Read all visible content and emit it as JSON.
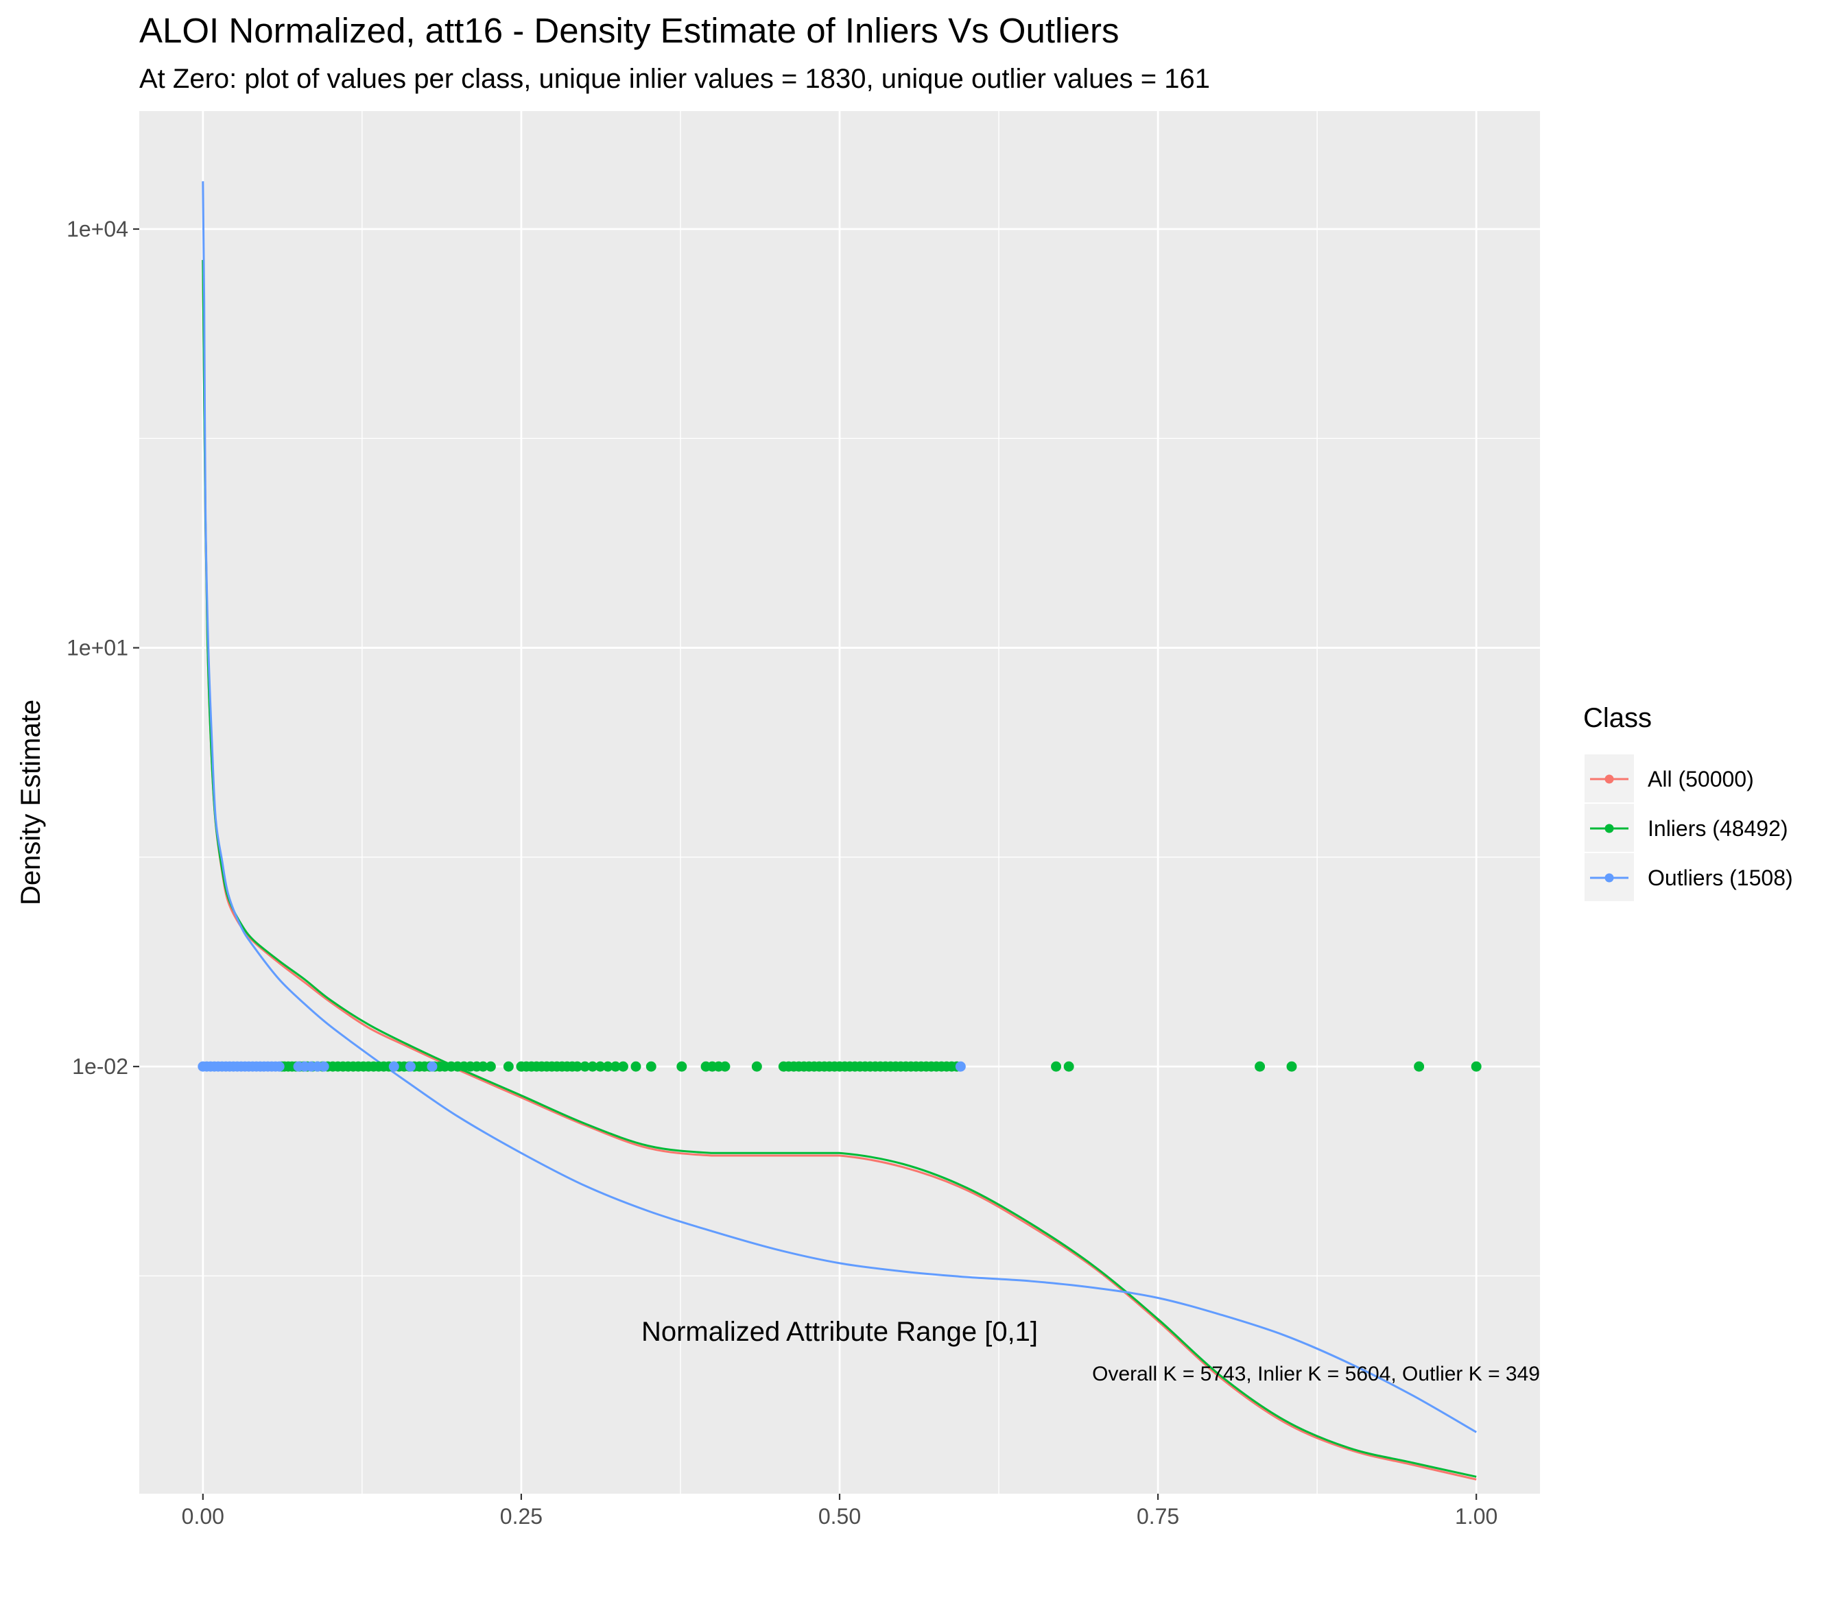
{
  "chart_data": {
    "type": "line",
    "title": "ALOI Normalized, att16 - Density Estimate of Inliers Vs Outliers",
    "subtitle": "At Zero: plot of values per class, unique inlier values = 1830, unique outlier values = 161",
    "xlabel": "Normalized Attribute Range [0,1]",
    "ylabel": "Density Estimate",
    "caption": "Overall K = 5743, Inlier K = 5604, Outlier K = 349",
    "x_scale": "linear",
    "y_scale": "log10",
    "xlim": [
      -0.05,
      1.05
    ],
    "ylim": [
      8.7e-06,
      70000
    ],
    "x_ticks": [
      {
        "value": 0,
        "label": "0.00"
      },
      {
        "value": 0.25,
        "label": "0.25"
      },
      {
        "value": 0.5,
        "label": "0.50"
      },
      {
        "value": 0.75,
        "label": "0.75"
      },
      {
        "value": 1,
        "label": "1.00"
      }
    ],
    "y_ticks": [
      {
        "value": 10000,
        "label": "1e+04"
      },
      {
        "value": 10,
        "label": "1e+01"
      },
      {
        "value": 0.01,
        "label": "1e-02"
      }
    ],
    "grid": true,
    "legend": {
      "title": "Class",
      "position": "right"
    },
    "series": [
      {
        "name": "All (50000)",
        "color": "#F8766D",
        "x": [
          0,
          0.002,
          0.004,
          0.007,
          0.01,
          0.015,
          0.02,
          0.03,
          0.04,
          0.06,
          0.08,
          0.1,
          0.13,
          0.16,
          0.2,
          0.25,
          0.3,
          0.35,
          0.4,
          0.45,
          0.5,
          0.55,
          0.6,
          0.65,
          0.7,
          0.75,
          0.8,
          0.85,
          0.9,
          0.95,
          1.0
        ],
        "y": [
          6000,
          80,
          8,
          1.5,
          0.55,
          0.25,
          0.15,
          0.1,
          0.078,
          0.055,
          0.04,
          0.029,
          0.019,
          0.014,
          0.0095,
          0.006,
          0.0038,
          0.0026,
          0.0023,
          0.0023,
          0.0023,
          0.0019,
          0.0013,
          0.00072,
          0.00036,
          0.00015,
          5.8e-05,
          2.8e-05,
          1.8e-05,
          1.4e-05,
          1.1e-05
        ]
      },
      {
        "name": "Inliers (48492)",
        "color": "#00BA38",
        "x": [
          0,
          0.002,
          0.004,
          0.007,
          0.01,
          0.015,
          0.02,
          0.03,
          0.04,
          0.06,
          0.08,
          0.1,
          0.13,
          0.16,
          0.2,
          0.25,
          0.3,
          0.35,
          0.4,
          0.45,
          0.5,
          0.55,
          0.6,
          0.65,
          0.7,
          0.75,
          0.8,
          0.85,
          0.9,
          0.95,
          1.0
        ],
        "y": [
          6000,
          80,
          8,
          1.5,
          0.56,
          0.26,
          0.16,
          0.105,
          0.08,
          0.057,
          0.042,
          0.03,
          0.02,
          0.0145,
          0.0098,
          0.0062,
          0.0039,
          0.0027,
          0.0024,
          0.0024,
          0.0024,
          0.002,
          0.00135,
          0.00075,
          0.00037,
          0.000155,
          6e-05,
          2.9e-05,
          1.85e-05,
          1.45e-05,
          1.15e-05
        ]
      },
      {
        "name": "Outliers (1508)",
        "color": "#619CFF",
        "x": [
          0,
          0.001,
          0.002,
          0.004,
          0.007,
          0.01,
          0.015,
          0.02,
          0.03,
          0.04,
          0.06,
          0.08,
          0.1,
          0.13,
          0.16,
          0.2,
          0.25,
          0.3,
          0.35,
          0.4,
          0.45,
          0.5,
          0.55,
          0.6,
          0.65,
          0.7,
          0.75,
          0.8,
          0.85,
          0.9,
          0.95,
          1.0
        ],
        "y": [
          22000,
          3000,
          100,
          12,
          2.2,
          0.6,
          0.3,
          0.17,
          0.1,
          0.072,
          0.042,
          0.028,
          0.0195,
          0.0122,
          0.0078,
          0.0044,
          0.0024,
          0.0014,
          0.00092,
          0.00066,
          0.00049,
          0.00039,
          0.00034,
          0.00031,
          0.00029,
          0.00026,
          0.00022,
          0.000166,
          0.000118,
          7.5e-05,
          4.4e-05,
          2.4e-05
        ]
      }
    ],
    "rug": {
      "y": 0.01,
      "inliers": [
        0.062,
        0.064,
        0.067,
        0.07,
        0.073,
        0.076,
        0.079,
        0.082,
        0.086,
        0.09,
        0.094,
        0.098,
        0.102,
        0.106,
        0.11,
        0.114,
        0.118,
        0.122,
        0.126,
        0.13,
        0.134,
        0.138,
        0.142,
        0.146,
        0.15,
        0.154,
        0.158,
        0.162,
        0.166,
        0.17,
        0.174,
        0.178,
        0.182,
        0.186,
        0.19,
        0.195,
        0.2,
        0.205,
        0.21,
        0.215,
        0.22,
        0.226,
        0.24,
        0.25,
        0.254,
        0.258,
        0.262,
        0.266,
        0.27,
        0.274,
        0.278,
        0.282,
        0.286,
        0.29,
        0.294,
        0.3,
        0.306,
        0.312,
        0.318,
        0.324,
        0.33,
        0.34,
        0.352,
        0.376,
        0.395,
        0.4,
        0.405,
        0.41,
        0.435,
        0.456,
        0.46,
        0.464,
        0.468,
        0.472,
        0.476,
        0.48,
        0.484,
        0.488,
        0.492,
        0.496,
        0.5,
        0.504,
        0.508,
        0.512,
        0.516,
        0.52,
        0.524,
        0.528,
        0.532,
        0.536,
        0.54,
        0.544,
        0.548,
        0.552,
        0.556,
        0.56,
        0.564,
        0.568,
        0.572,
        0.576,
        0.58,
        0.584,
        0.588,
        0.592,
        0.67,
        0.68,
        0.83,
        0.855,
        0.955,
        1.0
      ],
      "outliers": [
        0.0,
        0.003,
        0.006,
        0.009,
        0.012,
        0.015,
        0.018,
        0.021,
        0.024,
        0.027,
        0.03,
        0.033,
        0.036,
        0.039,
        0.042,
        0.045,
        0.048,
        0.051,
        0.054,
        0.057,
        0.06,
        0.075,
        0.08,
        0.085,
        0.09,
        0.095,
        0.15,
        0.163,
        0.18,
        0.595
      ]
    }
  }
}
